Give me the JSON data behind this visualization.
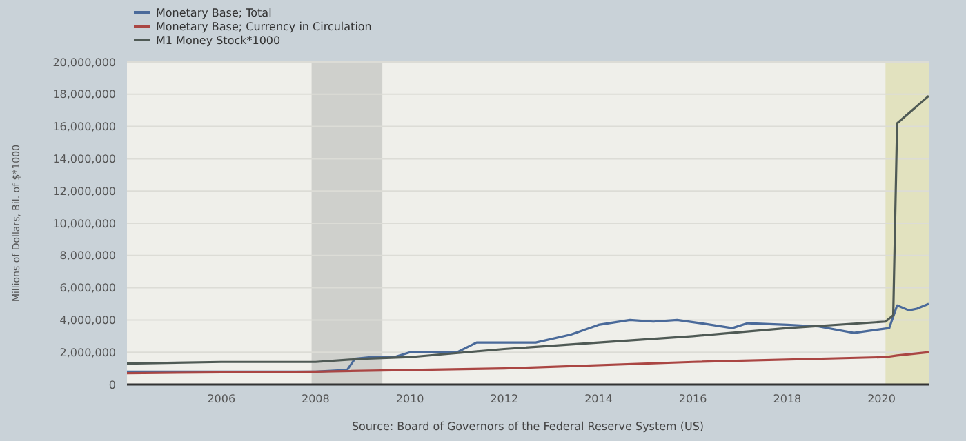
{
  "chart_data": {
    "type": "line",
    "ylabel": "Millions of Dollars, Bil. of $*1000",
    "annotations": [
      "Source: Board of Governors of the Federal Reserve System (US)"
    ],
    "xlim": [
      "2004-01",
      "2021-01"
    ],
    "xticks": [
      "2006",
      "2008",
      "2010",
      "2012",
      "2014",
      "2016",
      "2018",
      "2020"
    ],
    "ylim": [
      0,
      20000000
    ],
    "yticks": [
      0,
      {
        "value": 2000000,
        "label": "2,000,000"
      },
      {
        "value": 4000000,
        "label": "4,000,000"
      },
      {
        "value": 6000000,
        "label": "6,000,000"
      },
      {
        "value": 8000000,
        "label": "8,000,000"
      },
      {
        "value": 10000000,
        "label": "10,000,000"
      },
      {
        "value": 12000000,
        "label": "12,000,000"
      },
      {
        "value": 14000000,
        "label": "14,000,000"
      },
      {
        "value": 16000000,
        "label": "16,000,000"
      },
      {
        "value": 18000000,
        "label": "18,000,000"
      },
      {
        "value": 20000000,
        "label": "20,000,000"
      }
    ],
    "grid": "y",
    "legend": "top left",
    "line_style": "solid",
    "bands": [
      {
        "axis": "x",
        "from": "2007-12",
        "to": "2009-06",
        "color": "#cfd0cc"
      },
      {
        "axis": "x",
        "from": "2020-02",
        "to": "2021-01",
        "color": "#e2e2bf"
      }
    ],
    "series": [
      {
        "name": "Monetary Base; Total",
        "color": "#4a6a9a",
        "x": [
          "2004-01",
          "2006-01",
          "2008-01",
          "2008-09",
          "2008-11",
          "2009-03",
          "2009-09",
          "2010-01",
          "2010-07",
          "2011-01",
          "2011-06",
          "2012-01",
          "2012-09",
          "2013-06",
          "2014-01",
          "2014-09",
          "2015-03",
          "2015-09",
          "2016-03",
          "2016-11",
          "2017-03",
          "2018-01",
          "2018-09",
          "2019-06",
          "2019-12",
          "2020-03",
          "2020-05",
          "2020-08",
          "2020-10",
          "2021-01"
        ],
        "values": [
          800000,
          800000,
          800000,
          900000,
          1600000,
          1700000,
          1700000,
          2000000,
          2000000,
          2000000,
          2600000,
          2600000,
          2600000,
          3100000,
          3700000,
          4000000,
          3900000,
          4000000,
          3800000,
          3500000,
          3800000,
          3700000,
          3600000,
          3200000,
          3400000,
          3500000,
          4900000,
          4600000,
          4700000,
          5000000
        ]
      },
      {
        "name": "Monetary Base; Currency in Circulation",
        "color": "#aa4643",
        "x": [
          "2004-01",
          "2008-01",
          "2012-01",
          "2016-01",
          "2020-02",
          "2020-05",
          "2021-01"
        ],
        "values": [
          700000,
          800000,
          1000000,
          1400000,
          1700000,
          1800000,
          2000000
        ]
      },
      {
        "name": "M1 Money Stock*1000",
        "color": "#4f5a55",
        "x": [
          "2004-01",
          "2006-01",
          "2008-01",
          "2009-01",
          "2010-01",
          "2012-01",
          "2014-01",
          "2016-01",
          "2018-01",
          "2020-02",
          "2020-04",
          "2020-05",
          "2021-01"
        ],
        "values": [
          1300000,
          1400000,
          1400000,
          1600000,
          1700000,
          2200000,
          2600000,
          3000000,
          3500000,
          3900000,
          4300000,
          16200000,
          17900000
        ]
      }
    ]
  }
}
